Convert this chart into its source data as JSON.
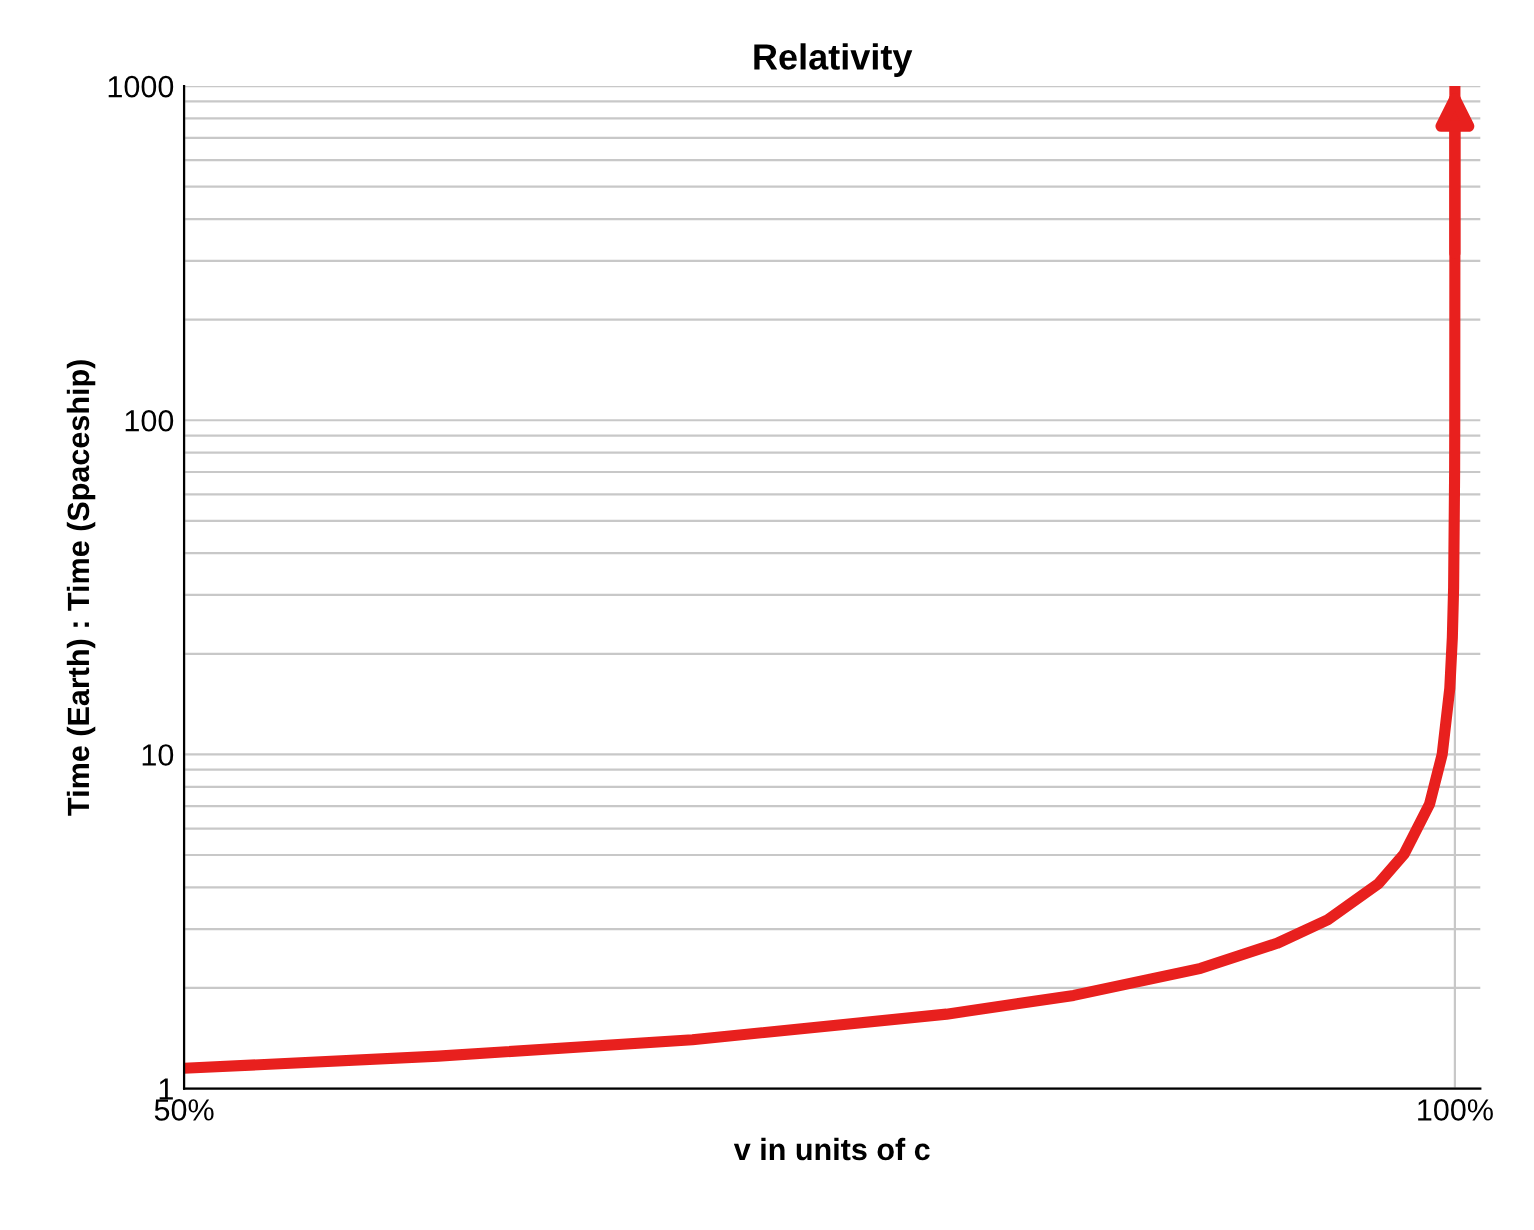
{
  "chart_data": {
    "type": "line",
    "title": "Relativity",
    "xlabel": "v in units of c",
    "ylabel": "Time (Earth) : Time (Spaceship)",
    "x": [
      50,
      60,
      70,
      80,
      85,
      90,
      93,
      95,
      97,
      98,
      99,
      99.5,
      99.8,
      99.9,
      99.95,
      99.99,
      99.995,
      99.9995,
      99.99995
    ],
    "series": [
      {
        "color": "#e8201e",
        "values": [
          1.15,
          1.25,
          1.4,
          1.67,
          1.9,
          2.29,
          2.72,
          3.2,
          4.11,
          5.03,
          7.09,
          10,
          15.8,
          22.4,
          31.6,
          70.7,
          100,
          316,
          1000
        ]
      }
    ],
    "xlim": [
      50,
      101
    ],
    "ylim": [
      1,
      1000
    ],
    "xticks": [
      {
        "value": 50,
        "label": "50%"
      },
      {
        "value": 100,
        "label": "100%"
      }
    ],
    "yticks": [
      1,
      10,
      100,
      1000
    ],
    "log": "y",
    "grid": true
  }
}
